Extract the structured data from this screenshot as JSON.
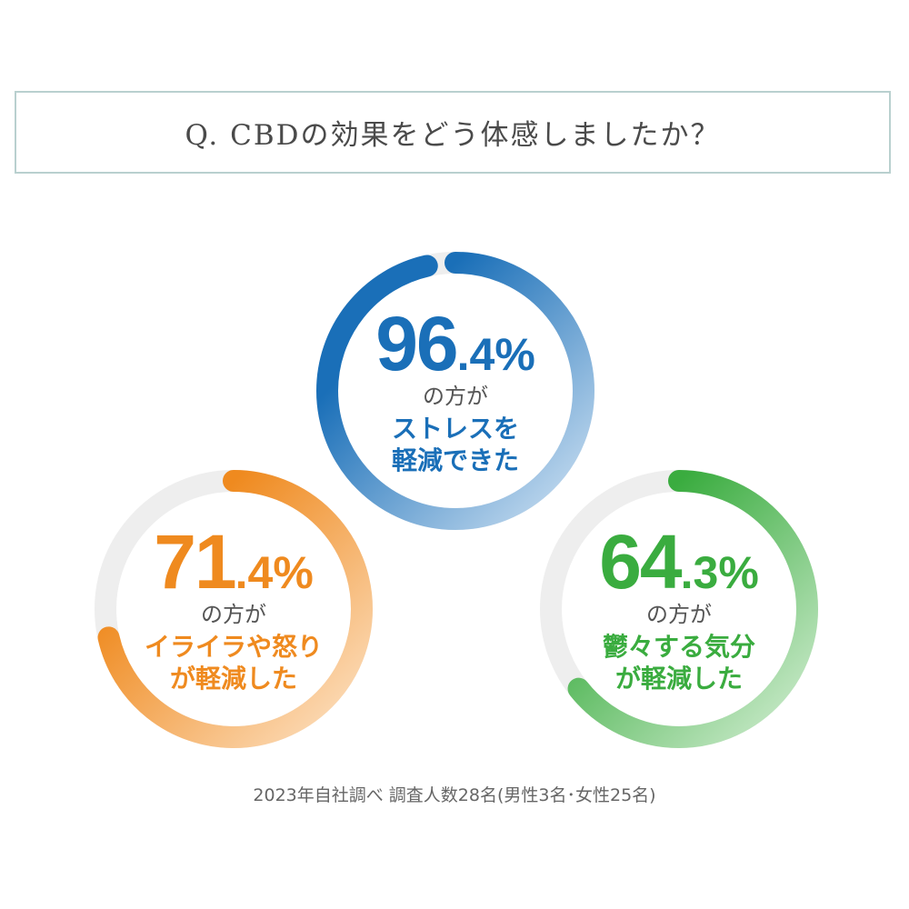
{
  "question": "Q. CBDの効果をどう体感しましたか？",
  "chart_data": [
    {
      "type": "pie",
      "style": "donut-gauge",
      "value": 96.4,
      "value_int": "96",
      "value_dec": ".4",
      "unit": "%",
      "sub": "の方が",
      "label_lines": [
        "ストレスを",
        "軽減できた"
      ],
      "color": "#1a6fb8",
      "color_light": "#cfe2f3",
      "track_color": "#eeeeee"
    },
    {
      "type": "pie",
      "style": "donut-gauge",
      "value": 71.4,
      "value_int": "71",
      "value_dec": ".4",
      "unit": "%",
      "sub": "の方が",
      "label_lines": [
        "イライラや怒り",
        "が軽減した"
      ],
      "color": "#ef8a1f",
      "color_light": "#fde3c6",
      "track_color": "#eeeeee"
    },
    {
      "type": "pie",
      "style": "donut-gauge",
      "value": 64.3,
      "value_int": "64",
      "value_dec": ".3",
      "unit": "%",
      "sub": "の方が",
      "label_lines": [
        "鬱々する気分",
        "が軽減した"
      ],
      "color": "#3aac3f",
      "color_light": "#d3eed3",
      "track_color": "#eeeeee"
    }
  ],
  "footnote": "2023年自社調べ 調査人数28名(男性3名･女性25名)"
}
